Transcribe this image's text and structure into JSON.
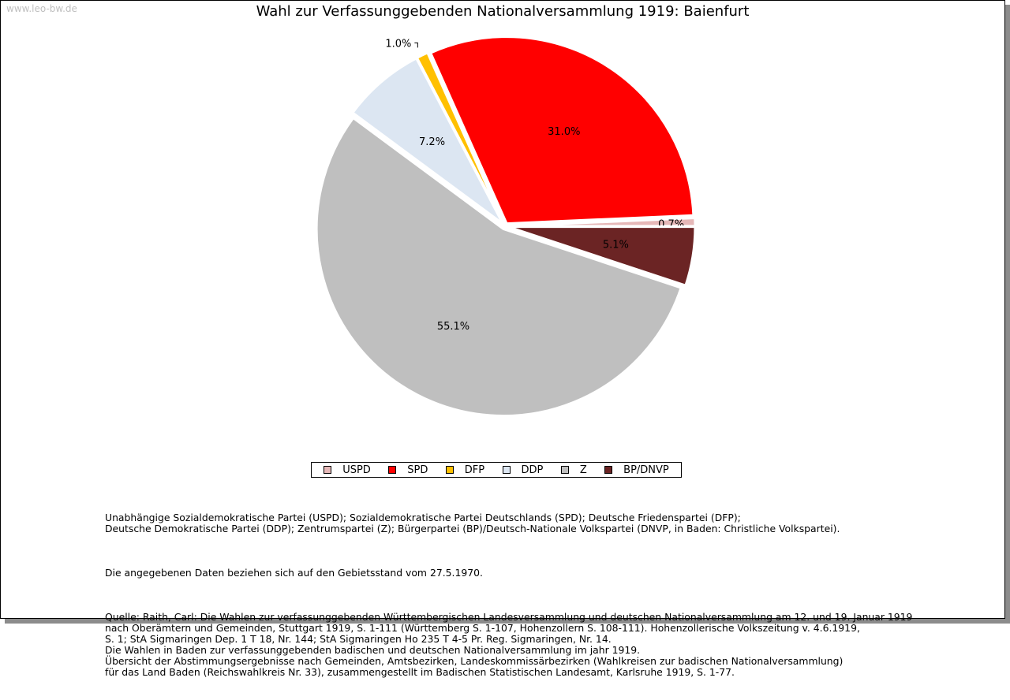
{
  "watermark": "www.leo-bw.de",
  "chart_data": {
    "type": "pie",
    "title": "Wahl zur Verfassunggebenden Nationalversammlung 1919: Baienfurt",
    "slices": [
      {
        "name": "USPD",
        "value": 0.7,
        "label": "0.7%",
        "color": "#e6b8b8"
      },
      {
        "name": "SPD",
        "value": 31.0,
        "label": "31.0%",
        "color": "#ff0000"
      },
      {
        "name": "DFP",
        "value": 1.0,
        "label": "1.0%",
        "color": "#ffc000"
      },
      {
        "name": "DDP",
        "value": 7.2,
        "label": "7.2%",
        "color": "#dce6f2"
      },
      {
        "name": "Z",
        "value": 55.1,
        "label": "55.1%",
        "color": "#bfbfbf"
      },
      {
        "name": "BP/DNVP",
        "value": 5.1,
        "label": "5.1%",
        "color": "#6b2424"
      }
    ],
    "legend_position": "bottom"
  },
  "notes": {
    "parties": "Unabhängige Sozialdemokratische Partei (USPD); Sozialdemokratische Partei Deutschlands (SPD); Deutsche Friedenspartei (DFP);\nDeutsche Demokratische Partei (DDP); Zentrumspartei (Z); Bürgerpartei (BP)/Deutsch-Nationale Volkspartei (DNVP, in Baden: Christliche Volkspartei).",
    "territory": "Die angegebenen Daten beziehen sich auf den Gebietsstand vom 27.5.1970.",
    "source": "Quelle: Raith, Carl: Die Wahlen zur verfassunggebenden Württembergischen Landesversammlung und deutschen Nationalversammlung am 12. und 19. Januar 1919\nnach Oberämtern und Gemeinden, Stuttgart 1919, S. 1-111 (Württemberg S. 1-107, Hohenzollern S. 108-111). Hohenzollerische Volkszeitung v. 4.6.1919,\nS. 1; StA Sigmaringen Dep. 1 T 18, Nr. 144; StA Sigmaringen Ho 235 T 4-5 Pr. Reg. Sigmaringen, Nr. 14.\nDie Wahlen in Baden zur verfassunggebenden badischen und deutschen Nationalversammlung im jahr 1919.\nÜbersicht der Abstimmungsergebnisse nach Gemeinden, Amtsbezirken, Landeskommissärbezirken (Wahlkreisen zur badischen Nationalversammlung)\nfür das Land Baden (Reichswahlkreis Nr. 33), zusammengestellt im Badischen Statistischen Landesamt, Karlsruhe 1919, S. 1-77."
  }
}
